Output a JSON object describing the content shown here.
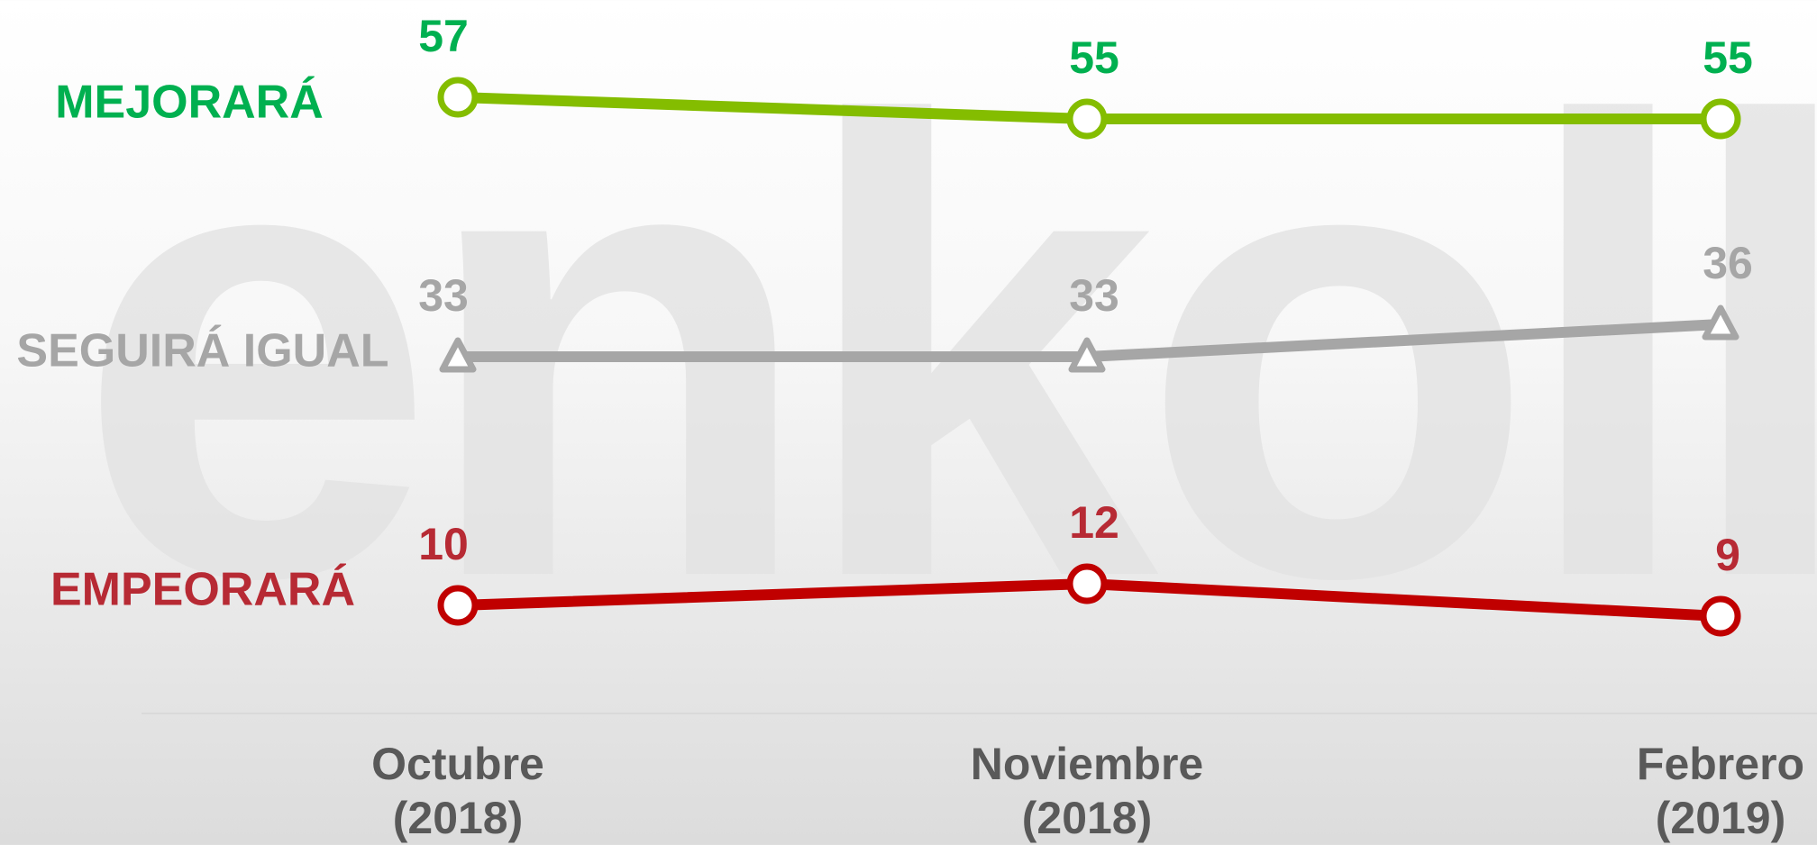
{
  "chart_data": {
    "type": "line",
    "watermark": "enkoll",
    "categories": [
      "Octubre\n(2018)",
      "Noviembre\n(2018)",
      "Febrero\n(2019)"
    ],
    "series": [
      {
        "name": "MEJORARÁ",
        "color": "#84bd00",
        "label_color": "#00b050",
        "marker": "circle",
        "values": [
          57,
          55,
          55
        ]
      },
      {
        "name": "SEGUIRÁ IGUAL",
        "color": "#a6a6a6",
        "label_color": "#a6a6a6",
        "marker": "triangle",
        "values": [
          33,
          33,
          36
        ]
      },
      {
        "name": "EMPEORARÁ",
        "color": "#c00000",
        "label_color": "#b72a34",
        "marker": "circle",
        "values": [
          10,
          12,
          9
        ]
      }
    ],
    "ylim": [
      0,
      66
    ]
  }
}
